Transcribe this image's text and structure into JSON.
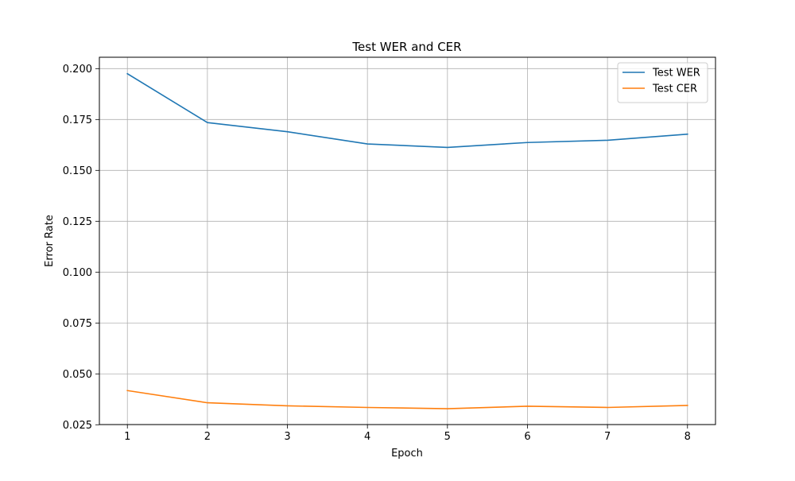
{
  "chart_data": {
    "type": "line",
    "title": "Test WER and CER",
    "xlabel": "Epoch",
    "ylabel": "Error Rate",
    "x": [
      1,
      2,
      3,
      4,
      5,
      6,
      7,
      8
    ],
    "x_ticks": [
      "1",
      "2",
      "3",
      "4",
      "5",
      "6",
      "7",
      "8"
    ],
    "xlim": [
      0.65,
      8.35
    ],
    "ylim": [
      0.0251,
      0.2056
    ],
    "y_ticks": [
      "0.025",
      "0.050",
      "0.075",
      "0.100",
      "0.125",
      "0.150",
      "0.175",
      "0.200"
    ],
    "grid": true,
    "legend_position": "top-right",
    "series": [
      {
        "name": "Test WER",
        "color": "#1f77b4",
        "values": [
          0.1975,
          0.1735,
          0.169,
          0.163,
          0.1613,
          0.1637,
          0.1648,
          0.1678
        ]
      },
      {
        "name": "Test CER",
        "color": "#ff7f0e",
        "values": [
          0.0418,
          0.0358,
          0.0343,
          0.0335,
          0.0329,
          0.0341,
          0.0335,
          0.0345
        ]
      }
    ]
  }
}
